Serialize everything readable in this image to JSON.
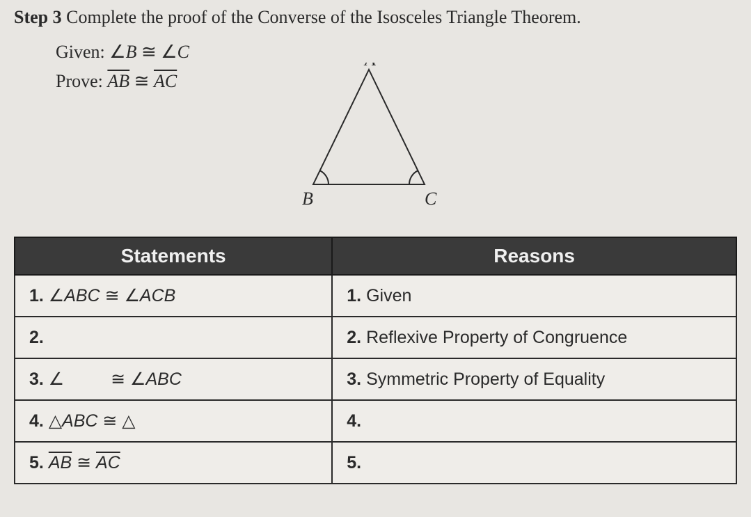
{
  "header": {
    "step_label": "Step 3",
    "step_text": "Complete the proof of the Converse of the Isosceles Triangle Theorem."
  },
  "given": {
    "label": "Given:",
    "content_html": "∠<i>B</i> ≅ ∠<i>C</i>"
  },
  "prove": {
    "label": "Prove:",
    "content_html": "<span class=\"seg\"><i>AB</i></span> ≅ <span class=\"seg\"><i>AC</i></span>"
  },
  "diagram": {
    "vertices": {
      "A": "A",
      "B": "B",
      "C": "C"
    },
    "points": {
      "A": [
        110,
        10
      ],
      "B": [
        30,
        175
      ],
      "C": [
        190,
        175
      ]
    },
    "label_positions": {
      "A": [
        104,
        4
      ],
      "B": [
        14,
        204
      ],
      "C": [
        190,
        204
      ]
    },
    "stroke": "#2a2a2a",
    "stroke_width": 2,
    "arc_color": "#2a2a2a",
    "font_size": 26
  },
  "table": {
    "headers": {
      "statements": "Statements",
      "reasons": "Reasons"
    },
    "rows": [
      {
        "stmt": "<b>1.</b> ∠<i>ABC</i> ≅ ∠<i>ACB</i>",
        "reason": "<b>1.</b> Given"
      },
      {
        "stmt": "<b>2.</b>",
        "reason": "<b>2.</b> Reflexive Property of Congruence"
      },
      {
        "stmt": "<b>3.</b> ∠<span class=\"blank\"></span> ≅ ∠<i>ABC</i>",
        "reason": "<b>3.</b> Symmetric Property of Equality"
      },
      {
        "stmt": "<b>4.</b> <span class=\"tri\">△</span><i>ABC</i> ≅ <span class=\"tri\">△</span>",
        "reason": "<b>4.</b>"
      },
      {
        "stmt": "<b>5.</b> <span class=\"seg\"><i>AB</i></span> ≅ <span class=\"seg\"><i>AC</i></span>",
        "reason": "<b>5.</b>"
      }
    ]
  }
}
